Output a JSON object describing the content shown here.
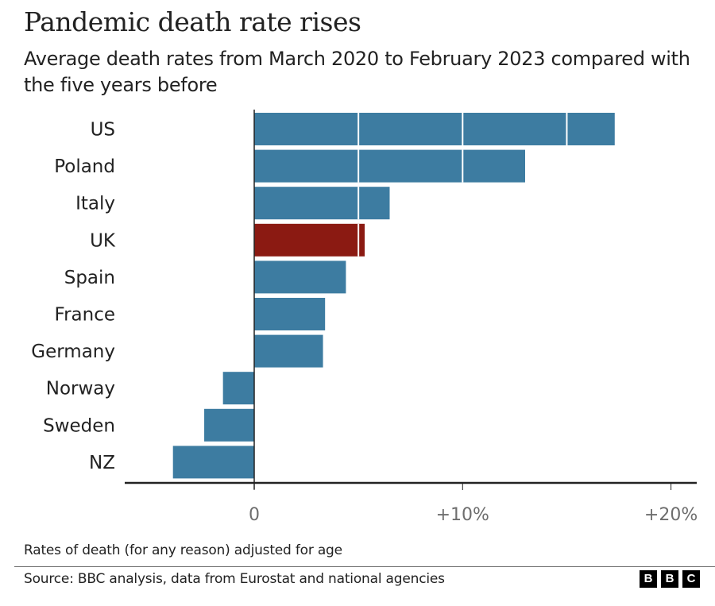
{
  "header": {
    "title": "Pandemic death rate rises",
    "subtitle": "Average death rates from March 2020 to February 2023 compared with the five years before"
  },
  "chart_data": {
    "type": "bar",
    "orientation": "horizontal",
    "title": "Pandemic death rate rises",
    "subtitle": "Average death rates from March 2020 to February 2023 compared with the five years before",
    "xlabel": "",
    "ylabel": "",
    "categories": [
      "US",
      "Poland",
      "Italy",
      "UK",
      "Spain",
      "France",
      "Germany",
      "Norway",
      "Sweden",
      "NZ"
    ],
    "values": [
      17.3,
      13.0,
      6.5,
      5.3,
      4.4,
      3.4,
      3.3,
      -1.5,
      -2.4,
      -3.9
    ],
    "unit": "%",
    "highlight": "UK",
    "colors": {
      "default": "#3d7ca1",
      "highlight": "#8b1a12",
      "gridline": "#ffffff",
      "axis": "#222222",
      "tick_label": "#6e6e6e"
    },
    "xlim": [
      -6.2,
      21.2
    ],
    "x_ticks": [
      0,
      10,
      20
    ],
    "x_tick_labels": [
      "0",
      "+10%",
      "+20%"
    ],
    "gridlines_at": [
      5,
      10,
      15
    ],
    "grid": true,
    "legend": "none"
  },
  "footer": {
    "note": "Rates of death (for any reason) adjusted for age",
    "source": "Source: BBC analysis, data from Eurostat and national agencies",
    "logo_letters": [
      "B",
      "B",
      "C"
    ]
  }
}
